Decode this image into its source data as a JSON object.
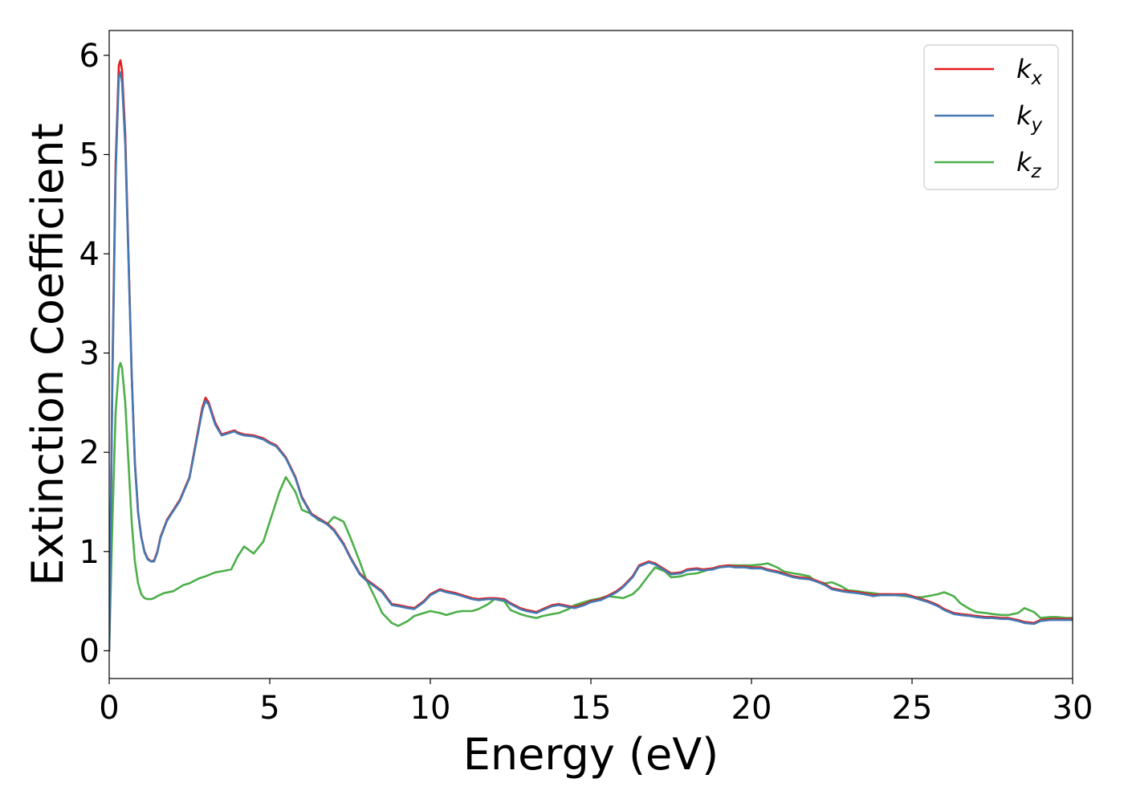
{
  "chart_data": {
    "type": "line",
    "title": "",
    "xlabel": "Energy (eV)",
    "ylabel": "Extinction Coefficient",
    "xlim": [
      0,
      30
    ],
    "ylim": [
      -0.28,
      6.25
    ],
    "xticks": [
      0,
      5,
      10,
      15,
      20,
      25,
      30
    ],
    "xtick_labels": [
      "0",
      "5",
      "10",
      "15",
      "20",
      "25",
      "30"
    ],
    "yticks": [
      0,
      1,
      2,
      3,
      4,
      5,
      6
    ],
    "ytick_labels": [
      "0",
      "1",
      "2",
      "3",
      "4",
      "5",
      "6"
    ],
    "grid": false,
    "legend_position": "top-right",
    "series": [
      {
        "name": "k",
        "subscript": "x",
        "color": "#e41a1c",
        "x": [
          0,
          0.1,
          0.2,
          0.3,
          0.35,
          0.4,
          0.5,
          0.6,
          0.7,
          0.8,
          0.9,
          1.0,
          1.1,
          1.2,
          1.3,
          1.4,
          1.5,
          1.6,
          1.8,
          2.0,
          2.2,
          2.5,
          2.7,
          2.9,
          3.0,
          3.1,
          3.3,
          3.5,
          3.7,
          3.9,
          4.0,
          4.2,
          4.5,
          4.8,
          5.0,
          5.2,
          5.5,
          5.8,
          6.0,
          6.3,
          6.5,
          6.8,
          7.0,
          7.3,
          7.5,
          7.8,
          8.0,
          8.3,
          8.5,
          8.8,
          9.0,
          9.3,
          9.5,
          9.8,
          10.0,
          10.3,
          10.5,
          10.8,
          11.0,
          11.3,
          11.5,
          11.8,
          12.0,
          12.3,
          12.5,
          12.8,
          13.0,
          13.3,
          13.5,
          13.8,
          14.0,
          14.3,
          14.5,
          14.8,
          15.0,
          15.3,
          15.5,
          15.8,
          16.0,
          16.3,
          16.5,
          16.8,
          17.0,
          17.3,
          17.5,
          17.8,
          18.0,
          18.3,
          18.5,
          18.8,
          19.0,
          19.3,
          19.5,
          19.8,
          20.0,
          20.3,
          20.5,
          20.8,
          21.0,
          21.3,
          21.5,
          21.8,
          22.0,
          22.3,
          22.5,
          22.8,
          23.0,
          23.3,
          23.5,
          23.8,
          24.0,
          24.3,
          24.5,
          24.8,
          25.0,
          25.3,
          25.5,
          25.8,
          26.0,
          26.3,
          26.5,
          26.8,
          27.0,
          27.3,
          27.5,
          27.8,
          28.0,
          28.3,
          28.5,
          28.8,
          29.0,
          29.3,
          29.5,
          29.8,
          30.0
        ],
        "y": [
          0.0,
          2.8,
          4.9,
          5.9,
          5.95,
          5.85,
          5.2,
          4.0,
          2.8,
          1.9,
          1.4,
          1.15,
          1.0,
          0.93,
          0.9,
          0.91,
          1.0,
          1.15,
          1.32,
          1.42,
          1.52,
          1.75,
          2.1,
          2.45,
          2.55,
          2.5,
          2.3,
          2.18,
          2.2,
          2.22,
          2.2,
          2.18,
          2.17,
          2.14,
          2.1,
          2.07,
          1.95,
          1.75,
          1.55,
          1.38,
          1.34,
          1.28,
          1.22,
          1.08,
          0.95,
          0.78,
          0.72,
          0.65,
          0.6,
          0.47,
          0.46,
          0.44,
          0.43,
          0.5,
          0.57,
          0.62,
          0.6,
          0.58,
          0.56,
          0.53,
          0.52,
          0.53,
          0.53,
          0.52,
          0.48,
          0.43,
          0.41,
          0.39,
          0.42,
          0.46,
          0.47,
          0.45,
          0.44,
          0.47,
          0.5,
          0.52,
          0.55,
          0.6,
          0.65,
          0.75,
          0.86,
          0.9,
          0.88,
          0.82,
          0.78,
          0.79,
          0.82,
          0.83,
          0.82,
          0.83,
          0.85,
          0.86,
          0.85,
          0.85,
          0.84,
          0.84,
          0.82,
          0.8,
          0.78,
          0.75,
          0.74,
          0.73,
          0.71,
          0.67,
          0.63,
          0.61,
          0.6,
          0.59,
          0.58,
          0.56,
          0.57,
          0.57,
          0.57,
          0.57,
          0.55,
          0.52,
          0.5,
          0.46,
          0.42,
          0.38,
          0.37,
          0.36,
          0.35,
          0.34,
          0.34,
          0.33,
          0.33,
          0.31,
          0.29,
          0.28,
          0.31,
          0.32,
          0.32,
          0.32,
          0.32
        ]
      },
      {
        "name": "k",
        "subscript": "y",
        "color": "#4479b2",
        "x": [
          0,
          0.1,
          0.2,
          0.3,
          0.35,
          0.4,
          0.5,
          0.6,
          0.7,
          0.8,
          0.9,
          1.0,
          1.1,
          1.2,
          1.3,
          1.4,
          1.5,
          1.6,
          1.8,
          2.0,
          2.2,
          2.5,
          2.7,
          2.9,
          3.0,
          3.1,
          3.3,
          3.5,
          3.7,
          3.9,
          4.0,
          4.2,
          4.5,
          4.8,
          5.0,
          5.2,
          5.5,
          5.8,
          6.0,
          6.3,
          6.5,
          6.8,
          7.0,
          7.3,
          7.5,
          7.8,
          8.0,
          8.3,
          8.5,
          8.8,
          9.0,
          9.3,
          9.5,
          9.8,
          10.0,
          10.3,
          10.5,
          10.8,
          11.0,
          11.3,
          11.5,
          11.8,
          12.0,
          12.3,
          12.5,
          12.8,
          13.0,
          13.3,
          13.5,
          13.8,
          14.0,
          14.3,
          14.5,
          14.8,
          15.0,
          15.3,
          15.5,
          15.8,
          16.0,
          16.3,
          16.5,
          16.8,
          17.0,
          17.3,
          17.5,
          17.8,
          18.0,
          18.3,
          18.5,
          18.8,
          19.0,
          19.3,
          19.5,
          19.8,
          20.0,
          20.3,
          20.5,
          20.8,
          21.0,
          21.3,
          21.5,
          21.8,
          22.0,
          22.3,
          22.5,
          22.8,
          23.0,
          23.3,
          23.5,
          23.8,
          24.0,
          24.3,
          24.5,
          24.8,
          25.0,
          25.3,
          25.5,
          25.8,
          26.0,
          26.3,
          26.5,
          26.8,
          27.0,
          27.3,
          27.5,
          27.8,
          28.0,
          28.3,
          28.5,
          28.8,
          29.0,
          29.3,
          29.5,
          29.8,
          30.0
        ],
        "y": [
          0.0,
          2.7,
          4.8,
          5.78,
          5.83,
          5.73,
          5.1,
          3.95,
          2.78,
          1.88,
          1.39,
          1.14,
          0.99,
          0.92,
          0.9,
          0.9,
          0.99,
          1.14,
          1.31,
          1.41,
          1.51,
          1.74,
          2.08,
          2.42,
          2.52,
          2.48,
          2.28,
          2.17,
          2.19,
          2.21,
          2.19,
          2.17,
          2.16,
          2.13,
          2.09,
          2.06,
          1.94,
          1.74,
          1.54,
          1.37,
          1.33,
          1.27,
          1.21,
          1.07,
          0.94,
          0.77,
          0.71,
          0.64,
          0.59,
          0.46,
          0.45,
          0.43,
          0.42,
          0.49,
          0.56,
          0.61,
          0.59,
          0.57,
          0.55,
          0.52,
          0.51,
          0.52,
          0.52,
          0.51,
          0.47,
          0.42,
          0.4,
          0.38,
          0.41,
          0.45,
          0.46,
          0.44,
          0.43,
          0.46,
          0.49,
          0.51,
          0.54,
          0.59,
          0.64,
          0.74,
          0.85,
          0.89,
          0.87,
          0.81,
          0.77,
          0.78,
          0.81,
          0.82,
          0.81,
          0.82,
          0.84,
          0.85,
          0.84,
          0.84,
          0.83,
          0.83,
          0.81,
          0.79,
          0.77,
          0.74,
          0.73,
          0.72,
          0.7,
          0.66,
          0.62,
          0.6,
          0.59,
          0.58,
          0.57,
          0.55,
          0.56,
          0.56,
          0.56,
          0.56,
          0.54,
          0.51,
          0.49,
          0.45,
          0.41,
          0.37,
          0.36,
          0.35,
          0.34,
          0.33,
          0.33,
          0.32,
          0.32,
          0.3,
          0.28,
          0.27,
          0.3,
          0.31,
          0.31,
          0.31,
          0.31
        ]
      },
      {
        "name": "k",
        "subscript": "z",
        "color": "#4daf4a",
        "x": [
          0,
          0.1,
          0.2,
          0.3,
          0.35,
          0.4,
          0.5,
          0.6,
          0.7,
          0.8,
          0.9,
          1.0,
          1.1,
          1.2,
          1.3,
          1.4,
          1.5,
          1.7,
          2.0,
          2.3,
          2.5,
          2.8,
          3.0,
          3.3,
          3.5,
          3.8,
          4.0,
          4.2,
          4.5,
          4.8,
          5.0,
          5.3,
          5.5,
          5.8,
          6.0,
          6.3,
          6.5,
          6.8,
          7.0,
          7.3,
          7.5,
          7.8,
          8.0,
          8.3,
          8.5,
          8.8,
          9.0,
          9.3,
          9.5,
          9.8,
          10.0,
          10.3,
          10.5,
          10.8,
          11.0,
          11.3,
          11.5,
          11.8,
          12.0,
          12.3,
          12.5,
          12.8,
          13.0,
          13.3,
          13.5,
          13.8,
          14.0,
          14.3,
          14.5,
          14.8,
          15.0,
          15.3,
          15.5,
          15.8,
          16.0,
          16.3,
          16.5,
          16.8,
          17.0,
          17.3,
          17.5,
          17.8,
          18.0,
          18.3,
          18.5,
          18.8,
          19.0,
          19.3,
          19.5,
          19.8,
          20.0,
          20.3,
          20.5,
          20.8,
          21.0,
          21.3,
          21.5,
          21.8,
          22.0,
          22.3,
          22.5,
          22.8,
          23.0,
          23.3,
          23.5,
          23.8,
          24.0,
          24.3,
          24.5,
          24.8,
          25.0,
          25.3,
          25.5,
          25.8,
          26.0,
          26.3,
          26.5,
          26.8,
          27.0,
          27.3,
          27.5,
          27.8,
          28.0,
          28.3,
          28.5,
          28.8,
          29.0,
          29.3,
          29.5,
          29.8,
          30.0
        ],
        "y": [
          0.0,
          1.3,
          2.4,
          2.85,
          2.9,
          2.85,
          2.5,
          1.9,
          1.3,
          0.9,
          0.68,
          0.57,
          0.53,
          0.52,
          0.52,
          0.53,
          0.55,
          0.58,
          0.6,
          0.66,
          0.68,
          0.73,
          0.75,
          0.79,
          0.8,
          0.82,
          0.95,
          1.05,
          0.98,
          1.1,
          1.3,
          1.6,
          1.75,
          1.6,
          1.42,
          1.38,
          1.32,
          1.28,
          1.35,
          1.3,
          1.15,
          0.9,
          0.72,
          0.52,
          0.38,
          0.28,
          0.25,
          0.3,
          0.35,
          0.38,
          0.4,
          0.38,
          0.36,
          0.39,
          0.4,
          0.4,
          0.42,
          0.47,
          0.52,
          0.5,
          0.41,
          0.37,
          0.35,
          0.33,
          0.35,
          0.37,
          0.38,
          0.42,
          0.46,
          0.49,
          0.51,
          0.53,
          0.55,
          0.54,
          0.53,
          0.57,
          0.63,
          0.76,
          0.84,
          0.8,
          0.74,
          0.75,
          0.77,
          0.78,
          0.8,
          0.83,
          0.85,
          0.86,
          0.86,
          0.86,
          0.86,
          0.87,
          0.88,
          0.84,
          0.8,
          0.78,
          0.77,
          0.75,
          0.7,
          0.68,
          0.69,
          0.65,
          0.61,
          0.6,
          0.59,
          0.58,
          0.57,
          0.57,
          0.56,
          0.55,
          0.54,
          0.54,
          0.55,
          0.57,
          0.59,
          0.55,
          0.48,
          0.42,
          0.39,
          0.38,
          0.37,
          0.36,
          0.36,
          0.38,
          0.43,
          0.39,
          0.33,
          0.34,
          0.34,
          0.33,
          0.33
        ]
      }
    ]
  }
}
